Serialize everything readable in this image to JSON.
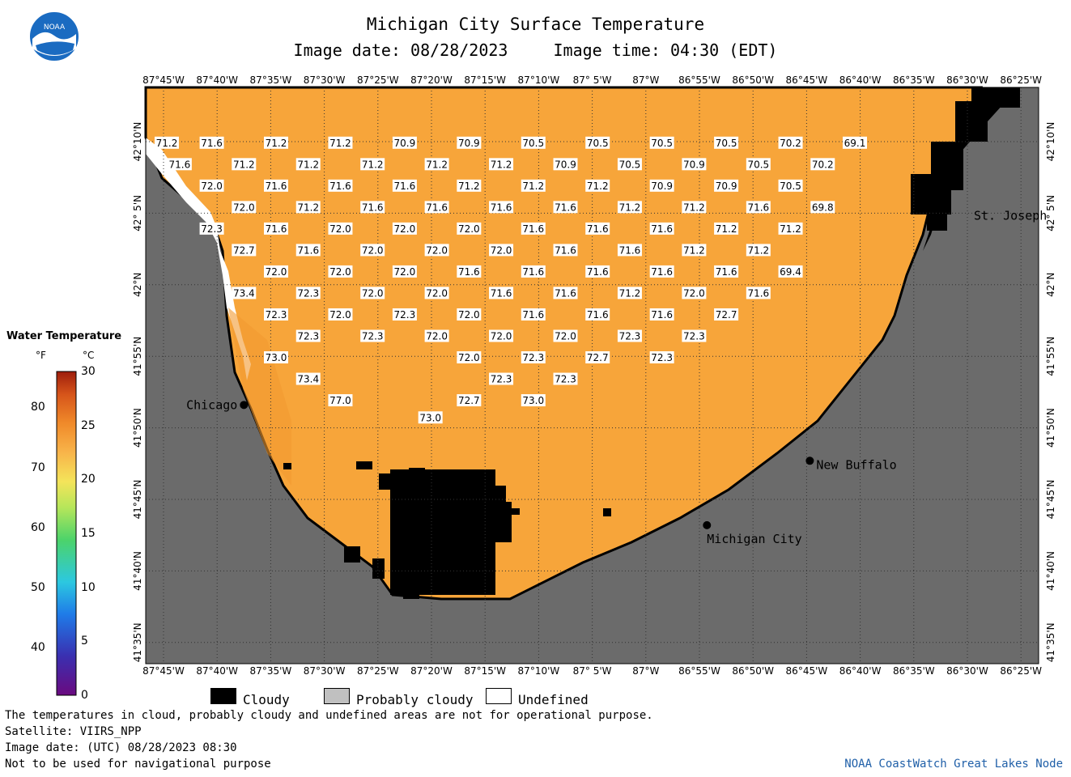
{
  "header": {
    "title": "Michigan City Surface Temperature",
    "image_date": "Image date: 08/28/2023",
    "image_time": "Image time: 04:30 (EDT)"
  },
  "logo": {
    "text": "NOAA"
  },
  "map": {
    "longitude_ticks": [
      "87°45'W",
      "87°40'W",
      "87°35'W",
      "87°30'W",
      "87°25'W",
      "87°20'W",
      "87°15'W",
      "87°10'W",
      "87° 5'W",
      "87°W",
      "86°55'W",
      "86°50'W",
      "86°45'W",
      "86°40'W",
      "86°35'W",
      "86°30'W",
      "86°25'W"
    ],
    "latitude_ticks": [
      "42°10'N",
      "42° 5'N",
      "42°N",
      "41°55'N",
      "41°50'N",
      "41°45'N",
      "41°40'N",
      "41°35'N"
    ],
    "locations": [
      {
        "name": "Chicago",
        "lon": -87.625,
        "lat": 41.86,
        "label_side": "left"
      },
      {
        "name": "New Buffalo",
        "lon": -86.745,
        "lat": 41.795,
        "label_side": "right"
      },
      {
        "name": "Michigan City",
        "lon": -86.905,
        "lat": 41.72,
        "label_side": "below-right"
      },
      {
        "name": "St. Joseph",
        "lon": -86.5,
        "lat": 42.085,
        "label_side": "right"
      }
    ],
    "water_color": "#F7A53A",
    "land_color": "#6B6B6B",
    "cloud_color": "#000000",
    "temperatures_f": [
      {
        "lon": -87.745,
        "lat": 42.165,
        "t": "71.2"
      },
      {
        "lon": -87.675,
        "lat": 42.165,
        "t": "71.6"
      },
      {
        "lon": -87.575,
        "lat": 42.165,
        "t": "71.2"
      },
      {
        "lon": -87.475,
        "lat": 42.165,
        "t": "71.2"
      },
      {
        "lon": -87.375,
        "lat": 42.165,
        "t": "70.9"
      },
      {
        "lon": -87.275,
        "lat": 42.165,
        "t": "70.9"
      },
      {
        "lon": -87.175,
        "lat": 42.165,
        "t": "70.5"
      },
      {
        "lon": -87.075,
        "lat": 42.165,
        "t": "70.5"
      },
      {
        "lon": -86.975,
        "lat": 42.165,
        "t": "70.5"
      },
      {
        "lon": -86.875,
        "lat": 42.165,
        "t": "70.5"
      },
      {
        "lon": -86.775,
        "lat": 42.165,
        "t": "70.2"
      },
      {
        "lon": -86.675,
        "lat": 42.165,
        "t": "69.1"
      },
      {
        "lon": -87.725,
        "lat": 42.14,
        "t": "71.6"
      },
      {
        "lon": -87.625,
        "lat": 42.14,
        "t": "71.2"
      },
      {
        "lon": -87.525,
        "lat": 42.14,
        "t": "71.2"
      },
      {
        "lon": -87.425,
        "lat": 42.14,
        "t": "71.2"
      },
      {
        "lon": -87.325,
        "lat": 42.14,
        "t": "71.2"
      },
      {
        "lon": -87.225,
        "lat": 42.14,
        "t": "71.2"
      },
      {
        "lon": -87.125,
        "lat": 42.14,
        "t": "70.9"
      },
      {
        "lon": -87.025,
        "lat": 42.14,
        "t": "70.5"
      },
      {
        "lon": -86.925,
        "lat": 42.14,
        "t": "70.9"
      },
      {
        "lon": -86.825,
        "lat": 42.14,
        "t": "70.5"
      },
      {
        "lon": -86.725,
        "lat": 42.14,
        "t": "70.2"
      },
      {
        "lon": -87.675,
        "lat": 42.115,
        "t": "72.0"
      },
      {
        "lon": -87.575,
        "lat": 42.115,
        "t": "71.6"
      },
      {
        "lon": -87.475,
        "lat": 42.115,
        "t": "71.6"
      },
      {
        "lon": -87.375,
        "lat": 42.115,
        "t": "71.6"
      },
      {
        "lon": -87.275,
        "lat": 42.115,
        "t": "71.2"
      },
      {
        "lon": -87.175,
        "lat": 42.115,
        "t": "71.2"
      },
      {
        "lon": -87.075,
        "lat": 42.115,
        "t": "71.2"
      },
      {
        "lon": -86.975,
        "lat": 42.115,
        "t": "70.9"
      },
      {
        "lon": -86.875,
        "lat": 42.115,
        "t": "70.9"
      },
      {
        "lon": -86.775,
        "lat": 42.115,
        "t": "70.5"
      },
      {
        "lon": -87.625,
        "lat": 42.09,
        "t": "72.0"
      },
      {
        "lon": -87.525,
        "lat": 42.09,
        "t": "71.2"
      },
      {
        "lon": -87.425,
        "lat": 42.09,
        "t": "71.6"
      },
      {
        "lon": -87.325,
        "lat": 42.09,
        "t": "71.6"
      },
      {
        "lon": -87.225,
        "lat": 42.09,
        "t": "71.6"
      },
      {
        "lon": -87.125,
        "lat": 42.09,
        "t": "71.6"
      },
      {
        "lon": -87.025,
        "lat": 42.09,
        "t": "71.2"
      },
      {
        "lon": -86.925,
        "lat": 42.09,
        "t": "71.2"
      },
      {
        "lon": -86.825,
        "lat": 42.09,
        "t": "71.6"
      },
      {
        "lon": -86.725,
        "lat": 42.09,
        "t": "69.8"
      },
      {
        "lon": -87.675,
        "lat": 42.065,
        "t": "72.3"
      },
      {
        "lon": -87.575,
        "lat": 42.065,
        "t": "71.6"
      },
      {
        "lon": -87.475,
        "lat": 42.065,
        "t": "72.0"
      },
      {
        "lon": -87.375,
        "lat": 42.065,
        "t": "72.0"
      },
      {
        "lon": -87.275,
        "lat": 42.065,
        "t": "72.0"
      },
      {
        "lon": -87.175,
        "lat": 42.065,
        "t": "71.6"
      },
      {
        "lon": -87.075,
        "lat": 42.065,
        "t": "71.6"
      },
      {
        "lon": -86.975,
        "lat": 42.065,
        "t": "71.6"
      },
      {
        "lon": -86.875,
        "lat": 42.065,
        "t": "71.2"
      },
      {
        "lon": -86.775,
        "lat": 42.065,
        "t": "71.2"
      },
      {
        "lon": -87.625,
        "lat": 42.04,
        "t": "72.7"
      },
      {
        "lon": -87.525,
        "lat": 42.04,
        "t": "71.6"
      },
      {
        "lon": -87.425,
        "lat": 42.04,
        "t": "72.0"
      },
      {
        "lon": -87.325,
        "lat": 42.04,
        "t": "72.0"
      },
      {
        "lon": -87.225,
        "lat": 42.04,
        "t": "72.0"
      },
      {
        "lon": -87.125,
        "lat": 42.04,
        "t": "71.6"
      },
      {
        "lon": -87.025,
        "lat": 42.04,
        "t": "71.6"
      },
      {
        "lon": -86.925,
        "lat": 42.04,
        "t": "71.2"
      },
      {
        "lon": -86.825,
        "lat": 42.04,
        "t": "71.2"
      },
      {
        "lon": -87.575,
        "lat": 42.015,
        "t": "72.0"
      },
      {
        "lon": -87.475,
        "lat": 42.015,
        "t": "72.0"
      },
      {
        "lon": -87.375,
        "lat": 42.015,
        "t": "72.0"
      },
      {
        "lon": -87.275,
        "lat": 42.015,
        "t": "71.6"
      },
      {
        "lon": -87.175,
        "lat": 42.015,
        "t": "71.6"
      },
      {
        "lon": -87.075,
        "lat": 42.015,
        "t": "71.6"
      },
      {
        "lon": -86.975,
        "lat": 42.015,
        "t": "71.6"
      },
      {
        "lon": -86.875,
        "lat": 42.015,
        "t": "71.6"
      },
      {
        "lon": -86.775,
        "lat": 42.015,
        "t": "69.4"
      },
      {
        "lon": -87.625,
        "lat": 41.99,
        "t": "73.4"
      },
      {
        "lon": -87.525,
        "lat": 41.99,
        "t": "72.3"
      },
      {
        "lon": -87.425,
        "lat": 41.99,
        "t": "72.0"
      },
      {
        "lon": -87.325,
        "lat": 41.99,
        "t": "72.0"
      },
      {
        "lon": -87.225,
        "lat": 41.99,
        "t": "71.6"
      },
      {
        "lon": -87.125,
        "lat": 41.99,
        "t": "71.6"
      },
      {
        "lon": -87.025,
        "lat": 41.99,
        "t": "71.2"
      },
      {
        "lon": -86.925,
        "lat": 41.99,
        "t": "72.0"
      },
      {
        "lon": -86.825,
        "lat": 41.99,
        "t": "71.6"
      },
      {
        "lon": -87.575,
        "lat": 41.965,
        "t": "72.3"
      },
      {
        "lon": -87.475,
        "lat": 41.965,
        "t": "72.0"
      },
      {
        "lon": -87.375,
        "lat": 41.965,
        "t": "72.3"
      },
      {
        "lon": -87.275,
        "lat": 41.965,
        "t": "72.0"
      },
      {
        "lon": -87.175,
        "lat": 41.965,
        "t": "71.6"
      },
      {
        "lon": -87.075,
        "lat": 41.965,
        "t": "71.6"
      },
      {
        "lon": -86.975,
        "lat": 41.965,
        "t": "71.6"
      },
      {
        "lon": -86.875,
        "lat": 41.965,
        "t": "72.7"
      },
      {
        "lon": -87.525,
        "lat": 41.94,
        "t": "72.3"
      },
      {
        "lon": -87.425,
        "lat": 41.94,
        "t": "72.3"
      },
      {
        "lon": -87.325,
        "lat": 41.94,
        "t": "72.0"
      },
      {
        "lon": -87.225,
        "lat": 41.94,
        "t": "72.0"
      },
      {
        "lon": -87.125,
        "lat": 41.94,
        "t": "72.0"
      },
      {
        "lon": -87.025,
        "lat": 41.94,
        "t": "72.3"
      },
      {
        "lon": -86.925,
        "lat": 41.94,
        "t": "72.3"
      },
      {
        "lon": -87.575,
        "lat": 41.915,
        "t": "73.0"
      },
      {
        "lon": -87.275,
        "lat": 41.915,
        "t": "72.0"
      },
      {
        "lon": -87.175,
        "lat": 41.915,
        "t": "72.3"
      },
      {
        "lon": -87.075,
        "lat": 41.915,
        "t": "72.7"
      },
      {
        "lon": -86.975,
        "lat": 41.915,
        "t": "72.3"
      },
      {
        "lon": -87.525,
        "lat": 41.89,
        "t": "73.4"
      },
      {
        "lon": -87.225,
        "lat": 41.89,
        "t": "72.3"
      },
      {
        "lon": -87.125,
        "lat": 41.89,
        "t": "72.3"
      },
      {
        "lon": -87.475,
        "lat": 41.865,
        "t": "77.0"
      },
      {
        "lon": -87.275,
        "lat": 41.865,
        "t": "72.7"
      },
      {
        "lon": -87.175,
        "lat": 41.865,
        "t": "73.0"
      },
      {
        "lon": -87.335,
        "lat": 41.845,
        "t": "73.0"
      }
    ]
  },
  "legend": {
    "title": "Water Temperature",
    "unit_f": "°F",
    "unit_c": "°C",
    "f_ticks": [
      "80",
      "70",
      "60",
      "50",
      "40"
    ],
    "c_ticks": [
      "30",
      "25",
      "20",
      "15",
      "10",
      "5",
      "0"
    ],
    "c_range": [
      0,
      30
    ],
    "colors": [
      "#6a0a80",
      "#3a2fb0",
      "#1f7be8",
      "#2cc8e0",
      "#4cd36a",
      "#b6e65a",
      "#f4e45a",
      "#f8b44a",
      "#f08a2a",
      "#d6541a",
      "#9e1d0c"
    ]
  },
  "key": {
    "cloudy": "Cloudy",
    "probably_cloudy": "Probably cloudy",
    "undefined": "Undefined"
  },
  "footer": {
    "line1": "The temperatures in cloud, probably cloudy and undefined areas are not for operational purpose.",
    "line2": "Satellite: VIIRS_NPP",
    "line3": "Image date: (UTC) 08/28/2023  08:30",
    "line4": "Not to be used for navigational purpose",
    "credit": "NOAA CoastWatch Great Lakes Node"
  }
}
